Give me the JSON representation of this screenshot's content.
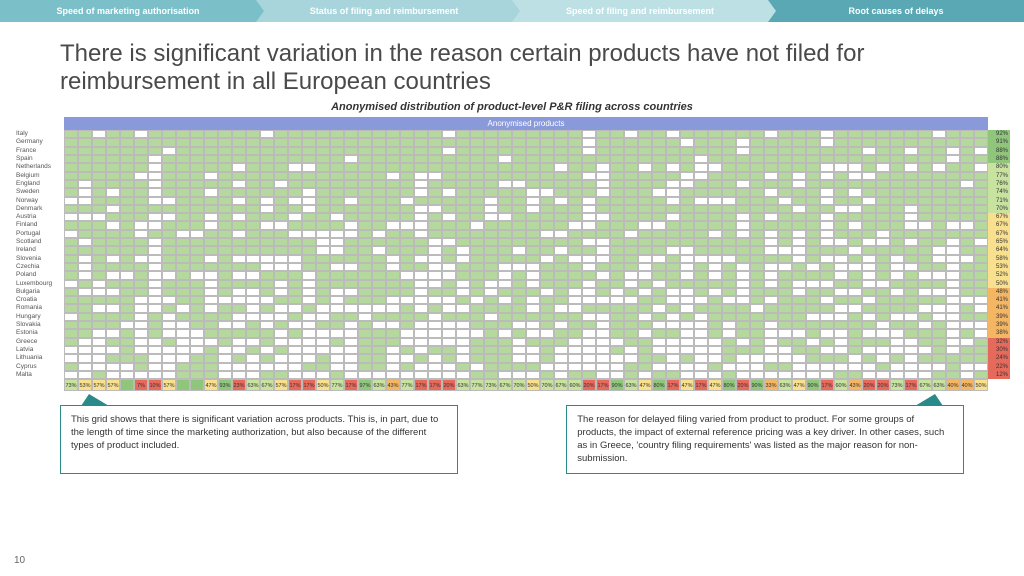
{
  "tabs": [
    {
      "label": "Speed of marketing authorisation",
      "bg": "#7bbfc9"
    },
    {
      "label": "Status of filing and reimbursement",
      "bg": "#a8d5db"
    },
    {
      "label": "Speed of filing and reimbursement",
      "bg": "#bde0e5"
    },
    {
      "label": "Root causes of delays",
      "bg": "#5aa8b3"
    }
  ],
  "title": "There is significant variation in the reason certain products have not filed for reimbursement in all European countries",
  "subtitle": "Anonymised distribution of product-level P&R filing across countries",
  "header_bar": "Anonymised products",
  "colors": {
    "filled": "#b5d99c",
    "empty": "#ffffff",
    "cell_border": "#bbbbbb"
  },
  "pct_colors": {
    "green": "#90c67c",
    "lightgreen": "#c8e2a0",
    "yellow": "#f8e08e",
    "orange": "#f5b663",
    "red": "#e66a5c"
  },
  "countries": [
    {
      "name": "Italy",
      "pct": "92%",
      "bg": "#90c67c"
    },
    {
      "name": "Germany",
      "pct": "91%",
      "bg": "#90c67c"
    },
    {
      "name": "France",
      "pct": "88%",
      "bg": "#90c67c"
    },
    {
      "name": "Spain",
      "pct": "88%",
      "bg": "#90c67c"
    },
    {
      "name": "Netherlands",
      "pct": "80%",
      "bg": "#c8e2a0"
    },
    {
      "name": "Belgium",
      "pct": "77%",
      "bg": "#c8e2a0"
    },
    {
      "name": "England",
      "pct": "76%",
      "bg": "#c8e2a0"
    },
    {
      "name": "Sweden",
      "pct": "74%",
      "bg": "#c8e2a0"
    },
    {
      "name": "Norway",
      "pct": "71%",
      "bg": "#c8e2a0"
    },
    {
      "name": "Denmark",
      "pct": "70%",
      "bg": "#c8e2a0"
    },
    {
      "name": "Austria",
      "pct": "67%",
      "bg": "#f8e08e"
    },
    {
      "name": "Finland",
      "pct": "67%",
      "bg": "#f8e08e"
    },
    {
      "name": "Portugal",
      "pct": "67%",
      "bg": "#f8e08e"
    },
    {
      "name": "Scotland",
      "pct": "65%",
      "bg": "#f8e08e"
    },
    {
      "name": "Ireland",
      "pct": "64%",
      "bg": "#f8e08e"
    },
    {
      "name": "Slovenia",
      "pct": "58%",
      "bg": "#f8e08e"
    },
    {
      "name": "Czechia",
      "pct": "53%",
      "bg": "#f8e08e"
    },
    {
      "name": "Poland",
      "pct": "52%",
      "bg": "#f8e08e"
    },
    {
      "name": "Luxembourg",
      "pct": "50%",
      "bg": "#f8e08e"
    },
    {
      "name": "Bulgaria",
      "pct": "48%",
      "bg": "#f5b663"
    },
    {
      "name": "Croatia",
      "pct": "41%",
      "bg": "#f5b663"
    },
    {
      "name": "Romania",
      "pct": "41%",
      "bg": "#f5b663"
    },
    {
      "name": "Hungary",
      "pct": "39%",
      "bg": "#f5b663"
    },
    {
      "name": "Slovakia",
      "pct": "39%",
      "bg": "#f5b663"
    },
    {
      "name": "Estonia",
      "pct": "38%",
      "bg": "#f5b663"
    },
    {
      "name": "Greece",
      "pct": "32%",
      "bg": "#e66a5c"
    },
    {
      "name": "Latvia",
      "pct": "30%",
      "bg": "#e66a5c"
    },
    {
      "name": "Lithuania",
      "pct": "24%",
      "bg": "#e66a5c"
    },
    {
      "name": "Cyprus",
      "pct": "22%",
      "bg": "#e66a5c"
    },
    {
      "name": "Malta",
      "pct": "12%",
      "bg": "#e66a5c"
    }
  ],
  "n_products": 66,
  "col_pcts": [
    "73%",
    "53%",
    "57%",
    "57%",
    "",
    "7%",
    "10%",
    "57%",
    "",
    "",
    "47%",
    "93%",
    "23%",
    "63%",
    "67%",
    "57%",
    "17%",
    "17%",
    "50%",
    "77%",
    "17%",
    "97%",
    "63%",
    "43%",
    "77%",
    "17%",
    "17%",
    "20%",
    "63%",
    "77%",
    "73%",
    "67%",
    "70%",
    "50%",
    "70%",
    "67%",
    "60%",
    "20%",
    "17%",
    "90%",
    "63%",
    "47%",
    "80%",
    "17%",
    "47%",
    "17%",
    "47%",
    "80%",
    "20%",
    "90%",
    "33%",
    "63%",
    "47%",
    "90%",
    "17%",
    "60%",
    "43%",
    "20%",
    "20%",
    "73%",
    "17%",
    "67%",
    "63%",
    "40%",
    "40%",
    "50%"
  ],
  "callout_left": "This grid shows that there is significant variation across products. This is, in part, due to the length of time since the marketing authorization, but also because of the different types of product included.",
  "callout_right": "The reason for delayed filing varied from product to product. For some groups of products, the impact of external reference pricing was a key driver. In other cases, such as in Greece, 'country filing requirements' was listed as the major reason for non-submission.",
  "page_number": "10"
}
